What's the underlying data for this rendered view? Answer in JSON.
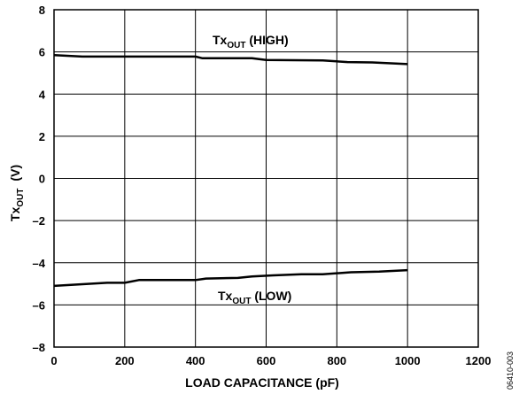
{
  "chart_data": {
    "type": "line",
    "xlabel": "LOAD CAPACITANCE (pF)",
    "ylabel": {
      "main": "Tx",
      "sub": "OUT",
      "unit": "(V)"
    },
    "xlim": [
      0,
      1200
    ],
    "ylim": [
      -8,
      8
    ],
    "x_ticks": [
      0,
      200,
      400,
      600,
      800,
      1000,
      1200
    ],
    "y_ticks": [
      8,
      6,
      4,
      2,
      0,
      -2,
      -4,
      -6,
      -8
    ],
    "y_tick_labels": [
      "8",
      "6",
      "4",
      "2",
      "0",
      "–2",
      "–4",
      "–6",
      "–8"
    ],
    "grid": true,
    "series": [
      {
        "key": "high",
        "label": {
          "main": "Tx",
          "sub": "OUT",
          "suffix": " (HIGH)"
        },
        "x": [
          0,
          80,
          200,
          400,
          420,
          560,
          600,
          760,
          830,
          900,
          1000
        ],
        "y": [
          5.85,
          5.78,
          5.78,
          5.78,
          5.7,
          5.7,
          5.62,
          5.6,
          5.52,
          5.5,
          5.42
        ]
      },
      {
        "key": "low",
        "label": {
          "main": "Tx",
          "sub": "OUT",
          "suffix": " (LOW)"
        },
        "x": [
          0,
          80,
          150,
          200,
          240,
          400,
          430,
          520,
          560,
          620,
          700,
          760,
          840,
          920,
          1000
        ],
        "y": [
          -5.1,
          -5.02,
          -4.95,
          -4.95,
          -4.82,
          -4.82,
          -4.75,
          -4.72,
          -4.65,
          -4.6,
          -4.55,
          -4.55,
          -4.45,
          -4.42,
          -4.35
        ]
      }
    ]
  },
  "figure_id": "06410-003"
}
